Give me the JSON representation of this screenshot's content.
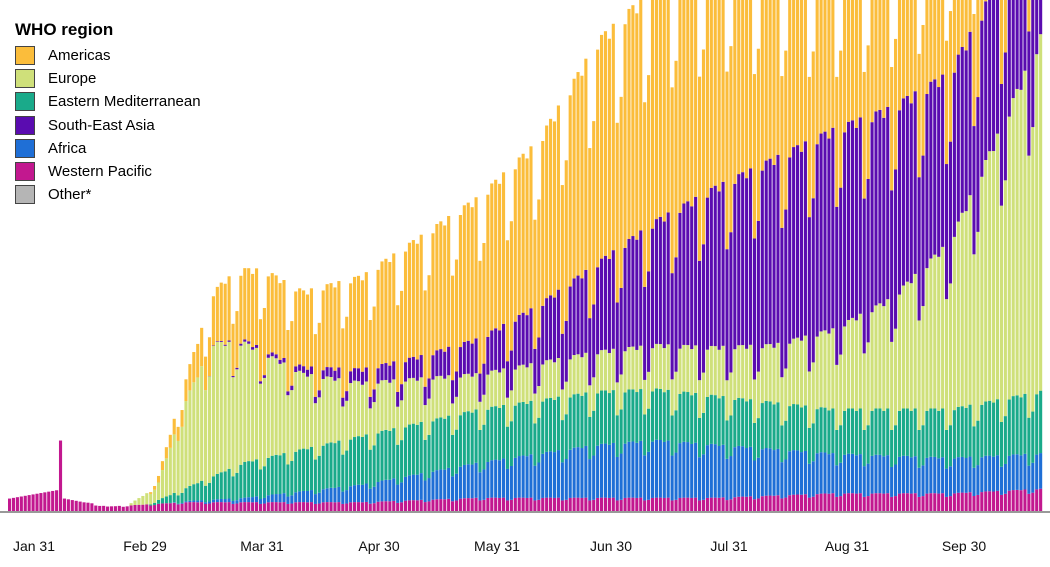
{
  "chart_data": {
    "type": "bar",
    "stacked": true,
    "title": "",
    "xlabel": "",
    "ylabel": "",
    "x_ticks": [
      "Jan 31",
      "Feb 29",
      "Mar 31",
      "Apr 30",
      "May 31",
      "Jun 30",
      "Jul 31",
      "Aug 31",
      "Sep 30"
    ],
    "grid": false,
    "legend": {
      "title": "WHO region",
      "placement": "top-left"
    },
    "series": [
      {
        "name": "Western Pacific",
        "color": "#c2188f",
        "anchors": [
          [
            0,
            3
          ],
          [
            12,
            5
          ],
          [
            13,
            17
          ],
          [
            14,
            3
          ],
          [
            25,
            1
          ],
          [
            45,
            2
          ],
          [
            60,
            2
          ],
          [
            90,
            2
          ],
          [
            120,
            3
          ],
          [
            150,
            3
          ],
          [
            180,
            3
          ],
          [
            210,
            4
          ],
          [
            240,
            4
          ],
          [
            263,
            5
          ]
        ]
      },
      {
        "name": "Africa",
        "color": "#1f6fd6",
        "anchors": [
          [
            0,
            0
          ],
          [
            40,
            0
          ],
          [
            60,
            1
          ],
          [
            90,
            4
          ],
          [
            120,
            8
          ],
          [
            150,
            12
          ],
          [
            165,
            13
          ],
          [
            180,
            12
          ],
          [
            210,
            9
          ],
          [
            240,
            8
          ],
          [
            263,
            8
          ]
        ]
      },
      {
        "name": "Eastern Mediterranean",
        "color": "#1aaa8a",
        "anchors": [
          [
            0,
            0
          ],
          [
            35,
            0
          ],
          [
            45,
            3
          ],
          [
            60,
            8
          ],
          [
            90,
            11
          ],
          [
            120,
            12
          ],
          [
            150,
            12
          ],
          [
            180,
            11
          ],
          [
            210,
            10
          ],
          [
            240,
            11
          ],
          [
            263,
            14
          ]
        ]
      },
      {
        "name": "Europe",
        "color": "#cfe07a",
        "anchors": [
          [
            0,
            0
          ],
          [
            30,
            0
          ],
          [
            38,
            4
          ],
          [
            45,
            20
          ],
          [
            52,
            30
          ],
          [
            60,
            27
          ],
          [
            75,
            17
          ],
          [
            90,
            12
          ],
          [
            105,
            10
          ],
          [
            120,
            8
          ],
          [
            150,
            9
          ],
          [
            180,
            11
          ],
          [
            195,
            13
          ],
          [
            210,
            18
          ],
          [
            225,
            25
          ],
          [
            240,
            38
          ],
          [
            255,
            65
          ],
          [
            263,
            80
          ]
        ]
      },
      {
        "name": "South-East Asia",
        "color": "#5a0cb0",
        "anchors": [
          [
            0,
            0
          ],
          [
            50,
            0
          ],
          [
            70,
            1
          ],
          [
            80,
            2
          ],
          [
            90,
            3
          ],
          [
            105,
            5
          ],
          [
            120,
            8
          ],
          [
            135,
            13
          ],
          [
            150,
            20
          ],
          [
            165,
            28
          ],
          [
            180,
            36
          ],
          [
            195,
            42
          ],
          [
            210,
            45
          ],
          [
            225,
            43
          ],
          [
            240,
            38
          ],
          [
            255,
            34
          ],
          [
            263,
            36
          ]
        ]
      },
      {
        "name": "Americas",
        "color": "#fbbd3b",
        "anchors": [
          [
            0,
            0
          ],
          [
            35,
            0
          ],
          [
            45,
            5
          ],
          [
            55,
            14
          ],
          [
            65,
            18
          ],
          [
            75,
            17
          ],
          [
            90,
            21
          ],
          [
            105,
            27
          ],
          [
            120,
            32
          ],
          [
            135,
            37
          ],
          [
            150,
            50
          ],
          [
            165,
            53
          ],
          [
            180,
            52
          ],
          [
            195,
            44
          ],
          [
            210,
            37
          ],
          [
            225,
            35
          ],
          [
            240,
            35
          ],
          [
            255,
            27
          ],
          [
            263,
            25
          ]
        ]
      },
      {
        "name": "Other*",
        "color": "#b5b5b5",
        "anchors": [
          [
            0,
            0
          ],
          [
            263,
            0
          ]
        ]
      }
    ],
    "days": 264,
    "weekly_amplitude": 0.15,
    "ylim": [
      0,
      110
    ]
  }
}
